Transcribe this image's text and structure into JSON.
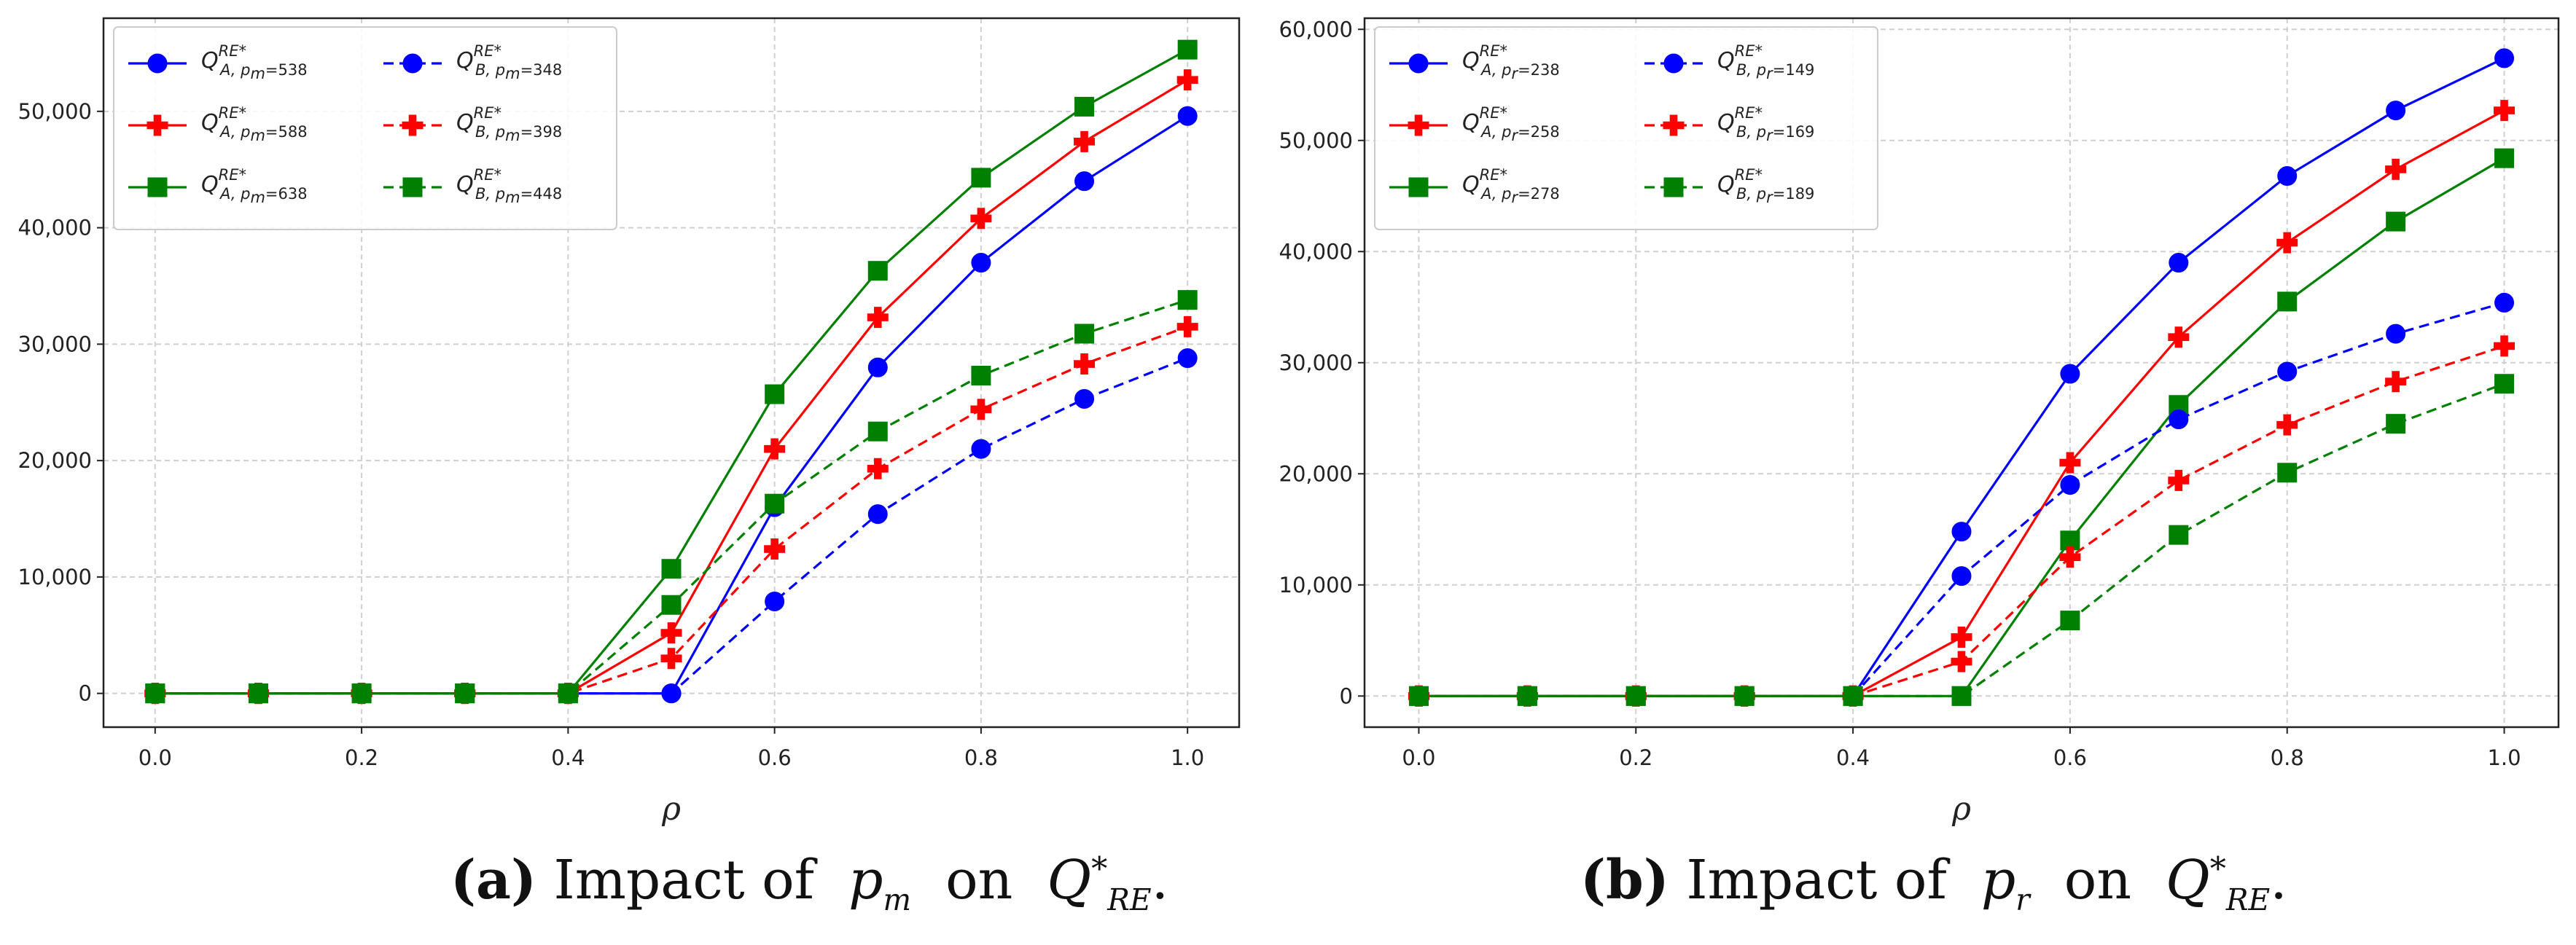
{
  "chart_data": [
    {
      "type": "line",
      "panel": "a",
      "xlabel": "ρ",
      "ylabel": "",
      "xlim": [
        -0.05,
        1.05
      ],
      "ylim": [
        -2900,
        58000
      ],
      "xticks": [
        0.0,
        0.2,
        0.4,
        0.6,
        0.8,
        1.0
      ],
      "xtick_labels": [
        "0.0",
        "0.2",
        "0.4",
        "0.6",
        "0.8",
        "1.0"
      ],
      "yticks": [
        0,
        10000,
        20000,
        30000,
        40000,
        50000
      ],
      "ytick_labels": [
        "0",
        "10,000",
        "20,000",
        "30,000",
        "40,000",
        "50,000"
      ],
      "grid": true,
      "legend": "top-left, 2 columns",
      "caption": {
        "label": "(a)",
        "text": "Impact of",
        "param": "p",
        "param_sub": "m",
        "on": "on",
        "q": "Q",
        "q_sub": "RE",
        "q_sup": "*",
        "end": "."
      },
      "x": [
        0.0,
        0.1,
        0.2,
        0.3,
        0.4,
        0.5,
        0.6,
        0.7,
        0.8,
        0.9,
        1.0
      ],
      "series": [
        {
          "name": "Q_{A,pm=538}^{RE*}",
          "sub_left": "A, p",
          "sub_idx": "m",
          "sub_val": "=538",
          "sup": "RE",
          "color": "#0000ff",
          "marker": "circle",
          "dash": false,
          "values": [
            0,
            0,
            0,
            0,
            0,
            0,
            16000,
            28000,
            37000,
            44000,
            49600
          ]
        },
        {
          "name": "Q_{A,pm=588}^{RE*}",
          "sub_left": "A, p",
          "sub_idx": "m",
          "sub_val": "=588",
          "sup": "RE",
          "color": "#ff0000",
          "marker": "plus",
          "dash": false,
          "values": [
            0,
            0,
            0,
            0,
            0,
            5200,
            21000,
            32300,
            40800,
            47400,
            52700
          ]
        },
        {
          "name": "Q_{A,pm=638}^{RE*}",
          "sub_left": "A, p",
          "sub_idx": "m",
          "sub_val": "=638",
          "sup": "RE",
          "color": "#008000",
          "marker": "square",
          "dash": false,
          "values": [
            0,
            0,
            0,
            0,
            0,
            10700,
            25700,
            36300,
            44300,
            50400,
            55300
          ]
        },
        {
          "name": "Q_{B,pm=348}^{RE*}",
          "sub_left": "B, p",
          "sub_idx": "m",
          "sub_val": "=348",
          "sup": "RE",
          "color": "#0000ff",
          "marker": "circle",
          "dash": true,
          "values": [
            0,
            0,
            0,
            0,
            0,
            0,
            7900,
            15400,
            21000,
            25300,
            28800
          ]
        },
        {
          "name": "Q_{B,pm=398}^{RE*}",
          "sub_left": "B, p",
          "sub_idx": "m",
          "sub_val": "=398",
          "sup": "RE",
          "color": "#ff0000",
          "marker": "plus",
          "dash": true,
          "values": [
            0,
            0,
            0,
            0,
            0,
            3000,
            12400,
            19300,
            24400,
            28300,
            31500
          ]
        },
        {
          "name": "Q_{B,pm=448}^{RE*}",
          "sub_left": "B, p",
          "sub_idx": "m",
          "sub_val": "=448",
          "sup": "RE",
          "color": "#008000",
          "marker": "square",
          "dash": true,
          "values": [
            0,
            0,
            0,
            0,
            0,
            7600,
            16300,
            22500,
            27300,
            30900,
            33800
          ]
        }
      ]
    },
    {
      "type": "line",
      "panel": "b",
      "xlabel": "ρ",
      "ylabel": "",
      "xlim": [
        -0.05,
        1.05
      ],
      "ylim": [
        -2800,
        61000
      ],
      "xticks": [
        0.0,
        0.2,
        0.4,
        0.6,
        0.8,
        1.0
      ],
      "xtick_labels": [
        "0.0",
        "0.2",
        "0.4",
        "0.6",
        "0.8",
        "1.0"
      ],
      "yticks": [
        0,
        10000,
        20000,
        30000,
        40000,
        50000,
        60000
      ],
      "ytick_labels": [
        "0",
        "10,000",
        "20,000",
        "30,000",
        "40,000",
        "50,000",
        "60,000"
      ],
      "grid": true,
      "legend": "top-left, 2 columns",
      "caption": {
        "label": "(b)",
        "text": "Impact of",
        "param": "p",
        "param_sub": "r",
        "on": "on",
        "q": "Q",
        "q_sub": "RE",
        "q_sup": "*",
        "end": "."
      },
      "x": [
        0.0,
        0.1,
        0.2,
        0.3,
        0.4,
        0.5,
        0.6,
        0.7,
        0.8,
        0.9,
        1.0
      ],
      "series": [
        {
          "name": "Q_{A,pr=238}^{RE*}",
          "sub_left": "A, p",
          "sub_idx": "r",
          "sub_val": "=238",
          "sup": "RE",
          "color": "#0000ff",
          "marker": "circle",
          "dash": false,
          "values": [
            0,
            0,
            0,
            0,
            0,
            14800,
            29000,
            39000,
            46800,
            52700,
            57400
          ]
        },
        {
          "name": "Q_{A,pr=258}^{RE*}",
          "sub_left": "A, p",
          "sub_idx": "r",
          "sub_val": "=258",
          "sup": "RE",
          "color": "#ff0000",
          "marker": "plus",
          "dash": false,
          "values": [
            0,
            0,
            0,
            0,
            0,
            5300,
            21000,
            32300,
            40800,
            47400,
            52700
          ]
        },
        {
          "name": "Q_{A,pr=278}^{RE*}",
          "sub_left": "A, p",
          "sub_idx": "r",
          "sub_val": "=278",
          "sup": "RE",
          "color": "#008000",
          "marker": "square",
          "dash": false,
          "values": [
            0,
            0,
            0,
            0,
            0,
            0,
            14000,
            26200,
            35500,
            42700,
            48400
          ]
        },
        {
          "name": "Q_{B,pr=149}^{RE*}",
          "sub_left": "B, p",
          "sub_idx": "r",
          "sub_val": "=149",
          "sup": "RE",
          "color": "#0000ff",
          "marker": "circle",
          "dash": true,
          "values": [
            0,
            0,
            0,
            0,
            0,
            10800,
            19000,
            24900,
            29200,
            32600,
            35400
          ]
        },
        {
          "name": "Q_{B,pr=169}^{RE*}",
          "sub_left": "B, p",
          "sub_idx": "r",
          "sub_val": "=169",
          "sup": "RE",
          "color": "#ff0000",
          "marker": "plus",
          "dash": true,
          "values": [
            0,
            0,
            0,
            0,
            0,
            3100,
            12500,
            19400,
            24400,
            28300,
            31500
          ]
        },
        {
          "name": "Q_{B,pr=189}^{RE*}",
          "sub_left": "B, p",
          "sub_idx": "r",
          "sub_val": "=189",
          "sup": "RE",
          "color": "#008000",
          "marker": "square",
          "dash": true,
          "values": [
            0,
            0,
            0,
            0,
            0,
            0,
            6800,
            14500,
            20100,
            24500,
            28100
          ]
        }
      ]
    }
  ]
}
